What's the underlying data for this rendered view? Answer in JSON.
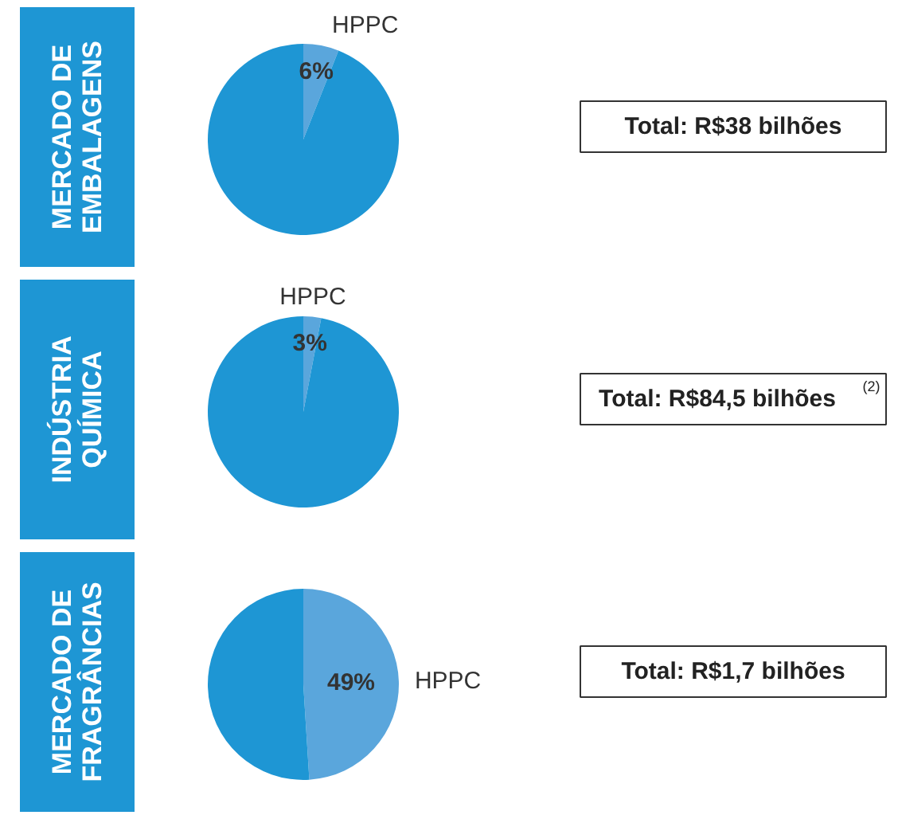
{
  "chart_data": [
    {
      "type": "pie",
      "title": "MERCADO DE\nEMBALAGENS",
      "categories": [
        "HPPC",
        null
      ],
      "values": [
        6,
        94
      ],
      "colors": [
        "#5aa6dc",
        "#1e96d4"
      ],
      "value_labels": [
        "6%",
        null
      ],
      "annotations": [
        "Total: R$38 bilhões"
      ]
    },
    {
      "type": "pie",
      "title": "INDÚSTRIA\nQUÍMICA",
      "categories": [
        "HPPC",
        null
      ],
      "values": [
        3,
        97
      ],
      "colors": [
        "#5aa6dc",
        "#1e96d4"
      ],
      "value_labels": [
        "3%",
        null
      ],
      "annotations": [
        "Total: R$84,5 bilhões$^{(2)}$"
      ]
    },
    {
      "type": "pie",
      "title": "MERCADO DE\nFRAGRÂNCIAS",
      "categories": [
        "HPPC",
        null
      ],
      "values": [
        49,
        51
      ],
      "colors": [
        "#5aa6dc",
        "#1e96d4"
      ],
      "value_labels": [
        "49%",
        null
      ],
      "annotations": [
        "Total: R$1,7 bilhões"
      ]
    }
  ]
}
